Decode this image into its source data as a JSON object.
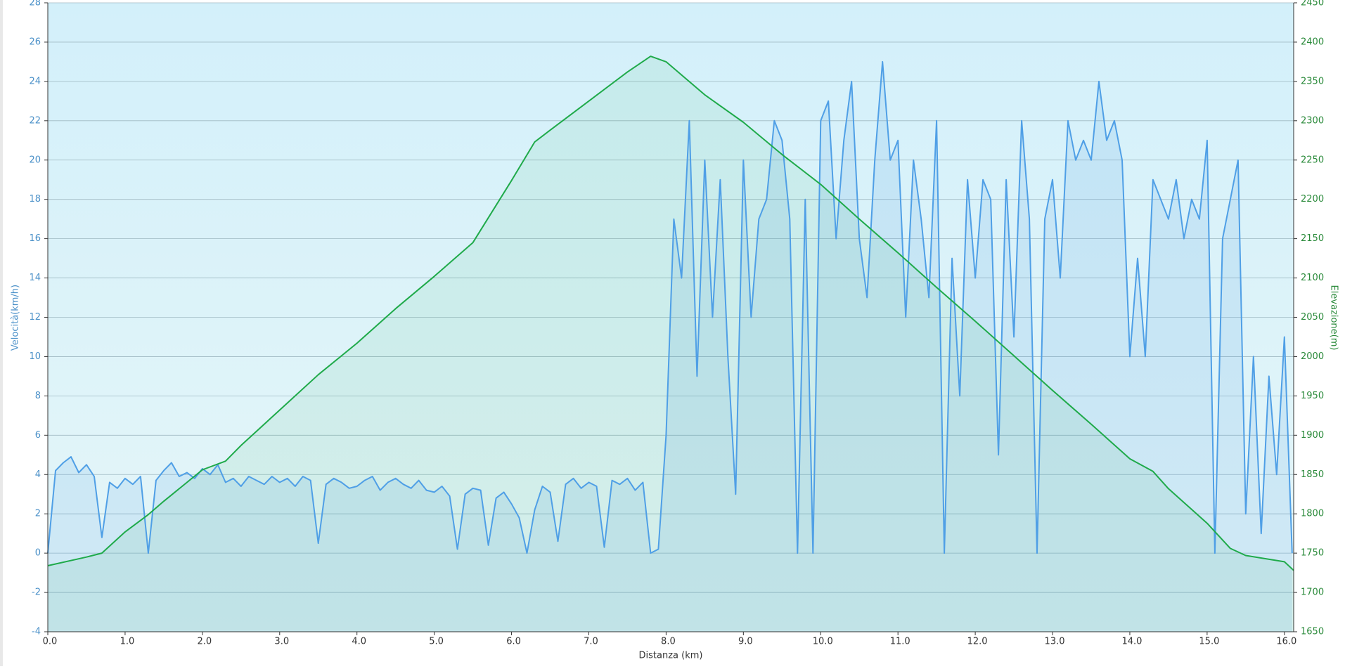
{
  "chart_data": {
    "type": "line",
    "xlabel": "Distanza  (km)",
    "ylabel": "Velocità(km/h)",
    "y2label": "Elevazione(m)",
    "xlim": [
      0,
      16.12
    ],
    "ylim": [
      -4,
      28
    ],
    "y2lim": [
      1650,
      2450
    ],
    "grid": true,
    "xticks": [
      {
        "value": 0,
        "label": "0.0"
      },
      {
        "value": 1,
        "label": "1.0"
      },
      {
        "value": 2,
        "label": "2.0"
      },
      {
        "value": 3,
        "label": "3.0"
      },
      {
        "value": 4,
        "label": "4.0"
      },
      {
        "value": 5,
        "label": "5.0"
      },
      {
        "value": 6,
        "label": "6.0"
      },
      {
        "value": 7,
        "label": "7.0"
      },
      {
        "value": 8,
        "label": "8.0"
      },
      {
        "value": 9,
        "label": "9.0"
      },
      {
        "value": 10,
        "label": "10.0"
      },
      {
        "value": 11,
        "label": "11.0"
      },
      {
        "value": 12,
        "label": "12.0"
      },
      {
        "value": 13,
        "label": "13.0"
      },
      {
        "value": 14,
        "label": "14.0"
      },
      {
        "value": 15,
        "label": "15.0"
      },
      {
        "value": 16,
        "label": "16.0"
      }
    ],
    "yticks": [
      -4,
      -2,
      0,
      2,
      4,
      6,
      8,
      10,
      12,
      14,
      16,
      18,
      20,
      22,
      24,
      26,
      28
    ],
    "y2ticks": [
      1650,
      1700,
      1750,
      1800,
      1850,
      1900,
      1950,
      2000,
      2050,
      2100,
      2150,
      2200,
      2250,
      2300,
      2350,
      2400,
      2450
    ],
    "series": [
      {
        "color": "#4f9fe6",
        "axis": "y",
        "x": [
          0,
          0.1,
          0.2,
          0.3,
          0.4,
          0.5,
          0.6,
          0.7,
          0.8,
          0.9,
          1,
          1.1,
          1.2,
          1.3,
          1.4,
          1.5,
          1.6,
          1.7,
          1.8,
          1.9,
          2,
          2.1,
          2.2,
          2.3,
          2.4,
          2.5,
          2.6,
          2.7,
          2.8,
          2.9,
          3,
          3.1,
          3.2,
          3.3,
          3.4,
          3.5,
          3.6,
          3.7,
          3.8,
          3.9,
          4,
          4.1,
          4.2,
          4.3,
          4.4,
          4.5,
          4.6,
          4.7,
          4.8,
          4.9,
          5,
          5.1,
          5.2,
          5.3,
          5.4,
          5.5,
          5.6,
          5.7,
          5.8,
          5.9,
          6,
          6.1,
          6.2,
          6.3,
          6.4,
          6.5,
          6.6,
          6.7,
          6.8,
          6.9,
          7,
          7.1,
          7.2,
          7.3,
          7.4,
          7.5,
          7.6,
          7.7,
          7.8,
          7.9,
          8,
          8.1,
          8.2,
          8.3,
          8.4,
          8.5,
          8.6,
          8.7,
          8.8,
          8.9,
          9,
          9.1,
          9.2,
          9.3,
          9.4,
          9.5,
          9.6,
          9.7,
          9.8,
          9.9,
          10,
          10.1,
          10.2,
          10.3,
          10.4,
          10.5,
          10.6,
          10.7,
          10.8,
          10.9,
          11,
          11.1,
          11.2,
          11.3,
          11.4,
          11.5,
          11.6,
          11.7,
          11.8,
          11.9,
          12,
          12.1,
          12.2,
          12.3,
          12.4,
          12.5,
          12.6,
          12.7,
          12.8,
          12.9,
          13,
          13.1,
          13.2,
          13.3,
          13.4,
          13.5,
          13.6,
          13.7,
          13.8,
          13.9,
          14,
          14.1,
          14.2,
          14.3,
          14.4,
          14.5,
          14.6,
          14.7,
          14.8,
          14.9,
          15,
          15.1,
          15.2,
          15.3,
          15.4,
          15.5,
          15.6,
          15.7,
          15.8,
          15.9,
          16,
          16.1
        ],
        "values": [
          0,
          4.2,
          4.6,
          4.9,
          4.1,
          4.5,
          3.9,
          0.8,
          3.6,
          3.3,
          3.8,
          3.5,
          3.9,
          0,
          3.7,
          4.2,
          4.6,
          3.9,
          4.1,
          3.8,
          4.3,
          4.0,
          4.5,
          3.6,
          3.8,
          3.4,
          3.9,
          3.7,
          3.5,
          3.9,
          3.6,
          3.8,
          3.4,
          3.9,
          3.7,
          0.5,
          3.5,
          3.8,
          3.6,
          3.3,
          3.4,
          3.7,
          3.9,
          3.2,
          3.6,
          3.8,
          3.5,
          3.3,
          3.7,
          3.2,
          3.1,
          3.4,
          2.9,
          0.2,
          3.0,
          3.3,
          3.2,
          0.4,
          2.8,
          3.1,
          2.5,
          1.8,
          0,
          2.2,
          3.4,
          3.1,
          0.6,
          3.5,
          3.8,
          3.3,
          3.6,
          3.4,
          0.3,
          3.7,
          3.5,
          3.8,
          3.2,
          3.6,
          0,
          0.2,
          6,
          17,
          14,
          22,
          9,
          20,
          12,
          19,
          10,
          3,
          20,
          12,
          17,
          18,
          22,
          21,
          17,
          0,
          18,
          0,
          22,
          23,
          16,
          21,
          24,
          16,
          13,
          20,
          25,
          20,
          21,
          12,
          20,
          17,
          13,
          22,
          0,
          15,
          8,
          19,
          14,
          19,
          18,
          5,
          19,
          11,
          22,
          17,
          0,
          17,
          19,
          14,
          22,
          20,
          21,
          20,
          24,
          21,
          22,
          20,
          10,
          15,
          10,
          19,
          18,
          17,
          19,
          16,
          18,
          17,
          21,
          0,
          16,
          18,
          20,
          2,
          10,
          1,
          9,
          4,
          11,
          0
        ]
      },
      {
        "color": "#1faa4a",
        "axis": "y2",
        "x": [
          0,
          0.5,
          0.7,
          1,
          1.3,
          1.5,
          2,
          2.3,
          2.5,
          3,
          3.5,
          4,
          4.5,
          5,
          5.5,
          6,
          6.3,
          6.5,
          7,
          7.5,
          7.8,
          8,
          8.5,
          9,
          9.5,
          10,
          10.5,
          11,
          11.5,
          12,
          12.5,
          13,
          13.5,
          14,
          14.3,
          14.5,
          15,
          15.3,
          15.5,
          16,
          16.12
        ],
        "values": [
          1734,
          1745,
          1750,
          1777,
          1799,
          1816,
          1856,
          1867,
          1887,
          1932,
          1977,
          2017,
          2061,
          2102,
          2145,
          2224,
          2273,
          2288,
          2325,
          2362,
          2382,
          2375,
          2333,
          2298,
          2257,
          2219,
          2175,
          2132,
          2088,
          2045,
          2001,
          1957,
          1914,
          1870,
          1854,
          1832,
          1788,
          1756,
          1747,
          1739,
          1728
        ]
      }
    ]
  }
}
